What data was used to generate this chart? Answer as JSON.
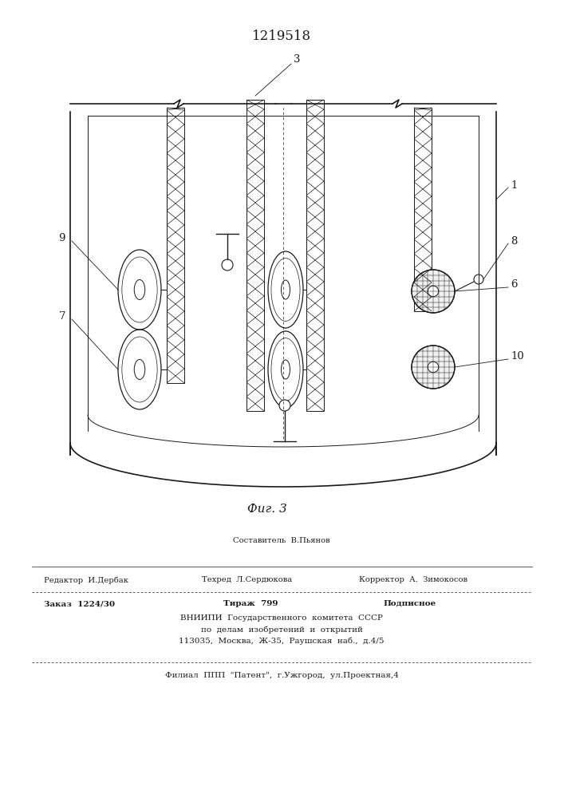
{
  "patent_number": "1219518",
  "figure_caption": "Фиг. 3",
  "bg_color": "#ffffff",
  "line_color": "#1a1a1a",
  "footer": {
    "sestavitel": "Составитель  В.Пьянов",
    "redaktor": "Редактор  И.Дербак",
    "tehred": "Техред  Л.Сердюкова",
    "korrektor": "Корректор  А.  Зимокосов",
    "zakaz": "Заказ  1224/30",
    "tirazh": "Тираж  799",
    "podpisnoe": "Подписное",
    "vniipи1": "ВНИИПИ  Государственного  комитета  СССР",
    "vniipи2": "по  делам  изобретений  и  открытий",
    "vniipи3": "113035,  Москва,  Ж-35,  Раушская  наб.,  д.4/5",
    "filial": "Филиал  ППП  \"Патент\",  г.Ужгород,  ул.Проектная,4"
  }
}
